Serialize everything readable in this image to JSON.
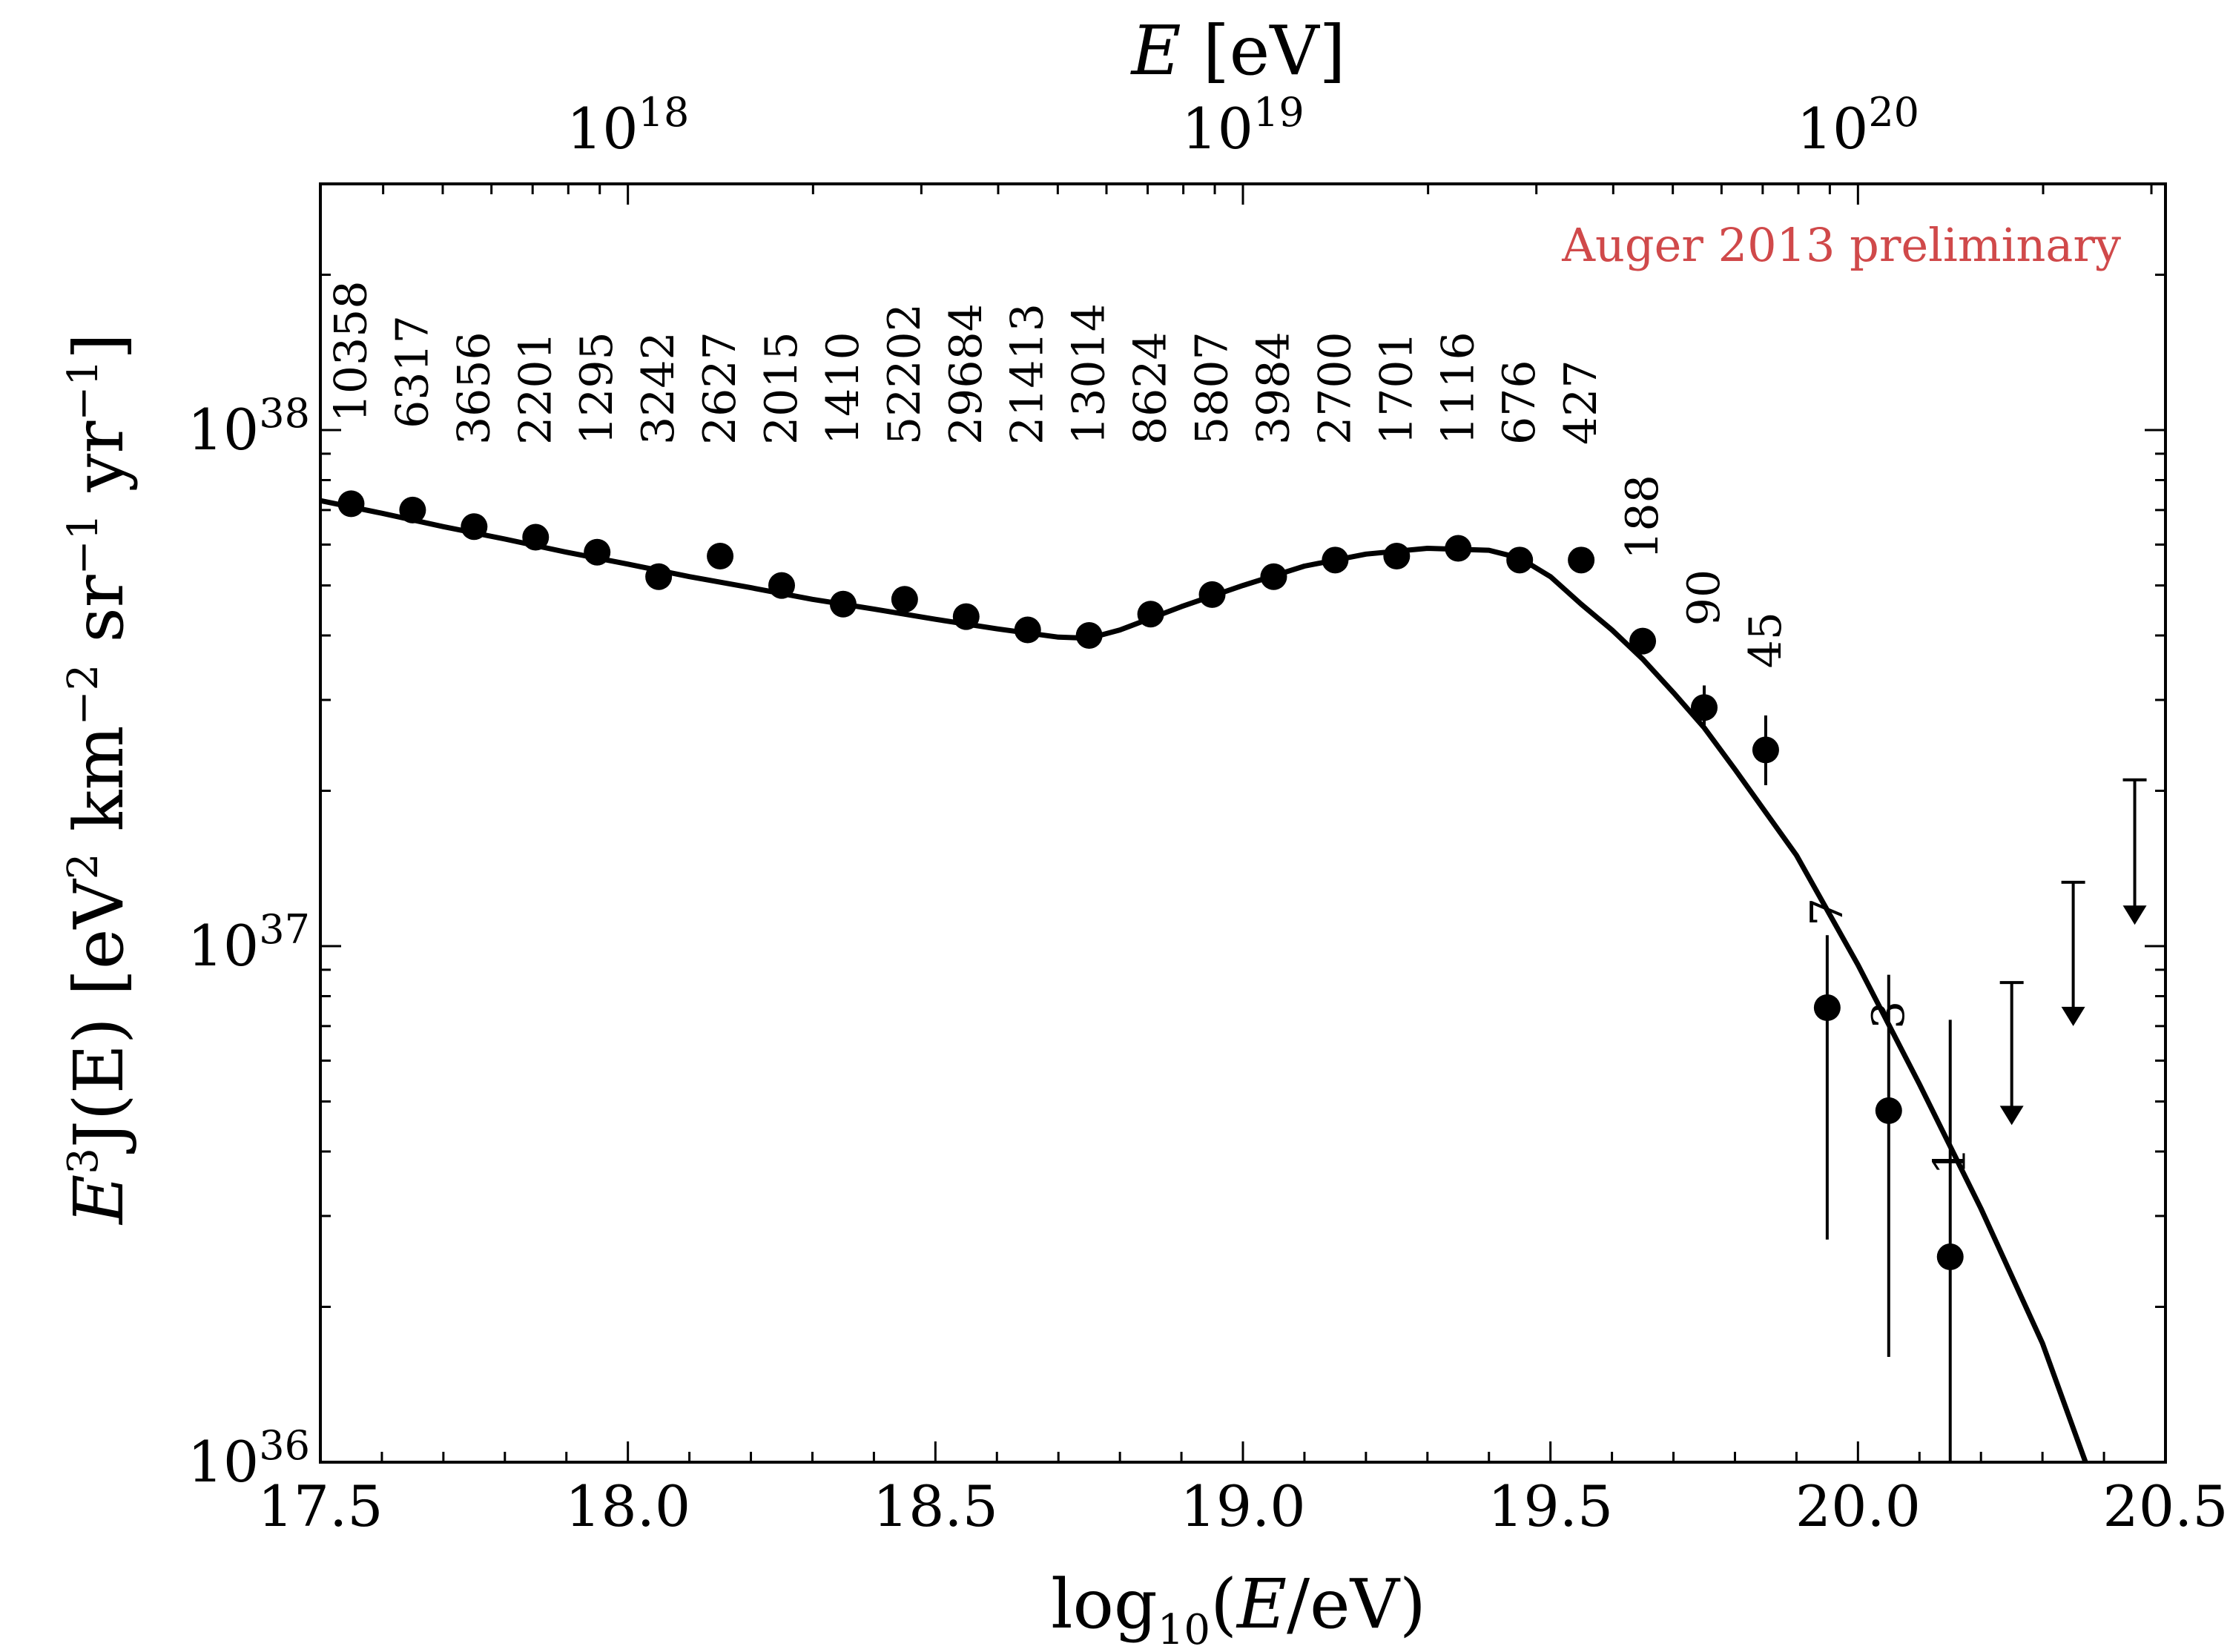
{
  "chart_data": {
    "type": "scatter",
    "title": "",
    "annotation": "Auger 2013 preliminary",
    "annotation_color": "#d0494a",
    "xlabel": "log10(E/eV)",
    "ylabel": "E3 J(E)  [eV2 km-2 sr-1 yr-1]",
    "top_xlabel": "E [eV]",
    "xlim": [
      17.5,
      20.5
    ],
    "ylim": [
      1e+36,
      3e+38
    ],
    "yscale": "log",
    "grid": false,
    "x_ticks": [
      "17.5",
      "18.0",
      "18.5",
      "19.0",
      "19.5",
      "20.0",
      "20.5"
    ],
    "top_ticks": [
      {
        "x": 18.0,
        "base": "10",
        "exp": "18"
      },
      {
        "x": 19.0,
        "base": "10",
        "exp": "19"
      },
      {
        "x": 20.0,
        "base": "10",
        "exp": "20"
      }
    ],
    "y_ticks": [
      {
        "value": 1e+36,
        "base": "10",
        "exp": "36"
      },
      {
        "value": 1e+37,
        "base": "10",
        "exp": "37"
      },
      {
        "value": 1e+38,
        "base": "10",
        "exp": "38"
      }
    ],
    "series": [
      {
        "type": "points",
        "points": [
          {
            "x": 17.55,
            "y": 7.2e+37,
            "count": "10358"
          },
          {
            "x": 17.65,
            "y": 7e+37,
            "count": "6317"
          },
          {
            "x": 17.75,
            "y": 6.5e+37,
            "count": "3656"
          },
          {
            "x": 17.85,
            "y": 6.2e+37,
            "count": "2201"
          },
          {
            "x": 17.95,
            "y": 5.8e+37,
            "count": "1295"
          },
          {
            "x": 18.05,
            "y": 5.2e+37,
            "count": "3242"
          },
          {
            "x": 18.15,
            "y": 5.7e+37,
            "count": "2627"
          },
          {
            "x": 18.25,
            "y": 5e+37,
            "count": "2015"
          },
          {
            "x": 18.35,
            "y": 4.6e+37,
            "count": "1410"
          },
          {
            "x": 18.45,
            "y": 4.7e+37,
            "count": "52202"
          },
          {
            "x": 18.55,
            "y": 4.35e+37,
            "count": "29684"
          },
          {
            "x": 18.65,
            "y": 4.1e+37,
            "count": "21413"
          },
          {
            "x": 18.75,
            "y": 4e+37,
            "count": "13014"
          },
          {
            "x": 18.85,
            "y": 4.4e+37,
            "count": "8624"
          },
          {
            "x": 18.95,
            "y": 4.8e+37,
            "count": "5807"
          },
          {
            "x": 19.05,
            "y": 5.2e+37,
            "count": "3984"
          },
          {
            "x": 19.15,
            "y": 5.6e+37,
            "count": "2700"
          },
          {
            "x": 19.25,
            "y": 5.7e+37,
            "count": "1701"
          },
          {
            "x": 19.35,
            "y": 5.9e+37,
            "count": "1116"
          },
          {
            "x": 19.45,
            "y": 5.6e+37,
            "count": "676"
          },
          {
            "x": 19.55,
            "y": 5.6e+37,
            "count": "427"
          },
          {
            "x": 19.65,
            "y": 3.9e+37,
            "count": "188"
          },
          {
            "x": 19.75,
            "y": 2.9e+37,
            "count": "90",
            "err": [
              2.65e+37,
              3.2e+37
            ]
          },
          {
            "x": 19.85,
            "y": 2.4e+37,
            "count": "45",
            "err": [
              2.05e+37,
              2.8e+37
            ]
          },
          {
            "x": 19.95,
            "y": 7.6e+36,
            "count": "7",
            "err": [
              2.7e+36,
              1.05e+37
            ]
          },
          {
            "x": 20.05,
            "y": 4.8e+36,
            "count": "3",
            "err": [
              1.6e+36,
              8.8e+36
            ]
          },
          {
            "x": 20.15,
            "y": 2.5e+36,
            "count": "1",
            "err": [
              1e+36,
              7.2e+36
            ]
          }
        ]
      },
      {
        "type": "upper_limits",
        "points": [
          {
            "x": 20.25,
            "y": 8.5e+36,
            "y_to": 4.5e+36
          },
          {
            "x": 20.35,
            "y": 1.33e+37,
            "y_to": 7e+36
          },
          {
            "x": 20.45,
            "y": 2.1e+37,
            "y_to": 1.1e+37
          }
        ]
      },
      {
        "type": "fit",
        "x": [
          17.5,
          17.6,
          17.7,
          17.8,
          17.9,
          18.0,
          18.1,
          18.2,
          18.3,
          18.4,
          18.5,
          18.6,
          18.7,
          18.75,
          18.8,
          18.9,
          19.0,
          19.1,
          19.2,
          19.3,
          19.4,
          19.45,
          19.5,
          19.55,
          19.6,
          19.65,
          19.7,
          19.75,
          19.8,
          19.9,
          20.0,
          20.1,
          20.2,
          20.3,
          20.37
        ],
        "y": [
          7.3e+37,
          6.9e+37,
          6.5e+37,
          6.15e+37,
          5.8e+37,
          5.5e+37,
          5.2e+37,
          4.95e+37,
          4.7e+37,
          4.5e+37,
          4.3e+37,
          4.12e+37,
          3.97e+37,
          3.95e+37,
          4.1e+37,
          4.55e+37,
          5e+37,
          5.45e+37,
          5.75e+37,
          5.9e+37,
          5.85e+37,
          5.65e+37,
          5.2e+37,
          4.6e+37,
          4.1e+37,
          3.6e+37,
          3.1e+37,
          2.65e+37,
          2.2e+37,
          1.5e+37,
          9.2e+36,
          5.4e+36,
          3.1e+36,
          1.7e+36,
          1e+36
        ]
      }
    ]
  }
}
